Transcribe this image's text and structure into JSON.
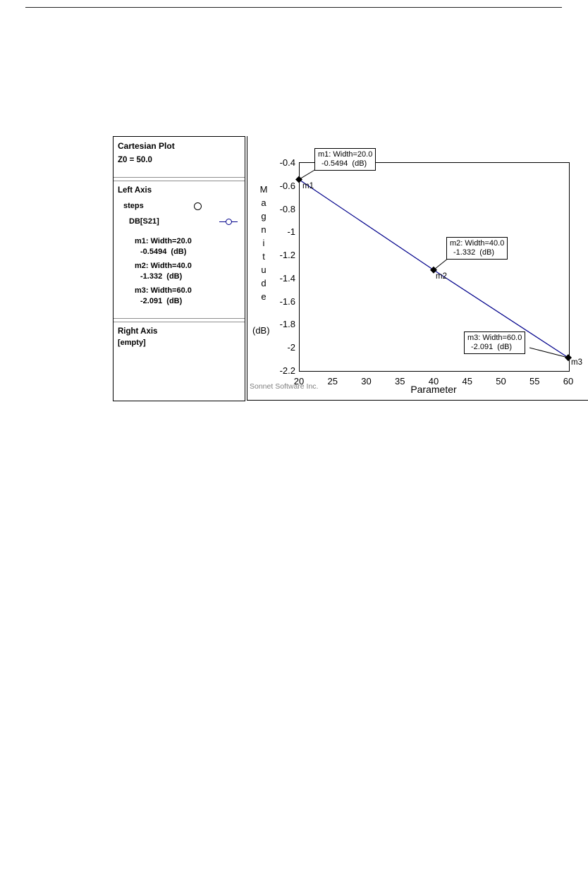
{
  "panel": {
    "title": "Cartesian Plot",
    "z0": "Z0 = 50.0",
    "left_axis_label": "Left Axis",
    "group_label": "steps",
    "series_label": "DB[S21]",
    "markers": [
      {
        "line1": "m1: Width=20.0",
        "line2": "-0.5494  (dB)"
      },
      {
        "line1": "m2: Width=40.0",
        "line2": "-1.332  (dB)"
      },
      {
        "line1": "m3: Width=60.0",
        "line2": "-2.091  (dB)"
      }
    ],
    "right_axis_label": "Right Axis",
    "right_axis_value": "[empty]",
    "icons": {
      "steps_marker": "circle-outline",
      "series_marker": "line-with-circle"
    }
  },
  "chart_data": {
    "type": "line",
    "xlabel": "Parameter",
    "ylabel": "Magnitude",
    "ylabel_unit": "(dB)",
    "watermark": "Sonnet Software Inc.",
    "xlim": [
      20,
      60
    ],
    "ylim": [
      -2.2,
      -0.4
    ],
    "xticks": [
      "20",
      "25",
      "30",
      "35",
      "40",
      "45",
      "50",
      "55",
      "60"
    ],
    "yticks": [
      "-0.4",
      "-0.6",
      "-0.8",
      "-1",
      "-1.2",
      "-1.4",
      "-1.6",
      "-1.8",
      "-2",
      "-2.2"
    ],
    "grid": false,
    "legend_position": "left-panel",
    "line_color": "#00008b",
    "marker_color": "#000000",
    "series": [
      {
        "name": "DB[S21]",
        "x": [
          20,
          40,
          60
        ],
        "y": [
          -0.5494,
          -1.332,
          -2.091
        ]
      }
    ],
    "annotations": [
      {
        "id": "m1",
        "x": 20,
        "y": -0.5494,
        "label": "m1",
        "box_line1": "m1: Width=20.0",
        "box_line2": "-0.5494  (dB)"
      },
      {
        "id": "m2",
        "x": 40,
        "y": -1.332,
        "label": "m2",
        "box_line1": "m2: Width=40.0",
        "box_line2": "-1.332  (dB)"
      },
      {
        "id": "m3",
        "x": 60,
        "y": -2.091,
        "label": "m3",
        "box_line1": "m3: Width=60.0",
        "box_line2": "-2.091  (dB)"
      }
    ]
  }
}
